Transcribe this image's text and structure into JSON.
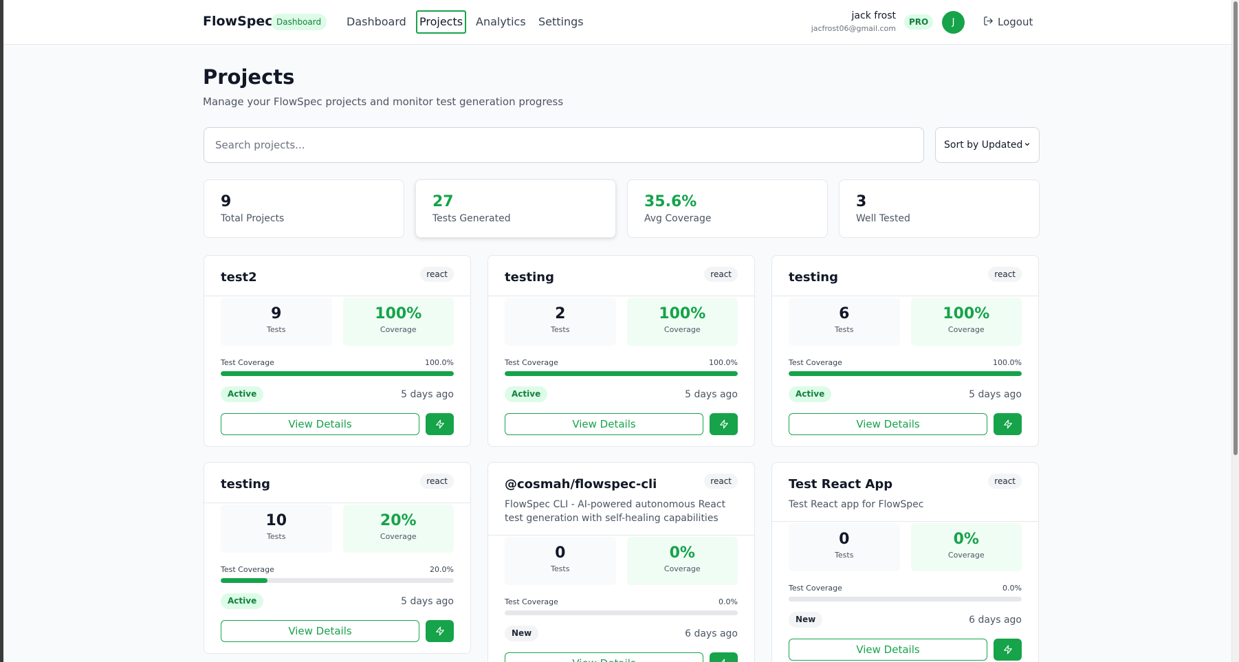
{
  "header": {
    "brand": "FlowSpec",
    "brand_badge": "Dashboard",
    "nav": [
      "Dashboard",
      "Projects",
      "Analytics",
      "Settings"
    ],
    "active_nav": "Projects",
    "user_name": "jack frost",
    "user_email": "jacfrost06@gmail.com",
    "plan_badge": "PRO",
    "avatar_initial": "J",
    "logout_label": "Logout",
    "logout_icon": "logout-icon"
  },
  "page": {
    "title": "Projects",
    "subtitle": "Manage your FlowSpec projects and monitor test generation progress"
  },
  "search": {
    "placeholder": "Search projects...",
    "value": ""
  },
  "sort": {
    "selected": "Sort by Updated",
    "icon": "chevron-down-icon"
  },
  "stats": [
    {
      "value": "9",
      "label": "Total Projects"
    },
    {
      "value": "27",
      "label": "Tests Generated"
    },
    {
      "value": "35.6%",
      "label": "Avg Coverage"
    },
    {
      "value": "3",
      "label": "Well Tested"
    }
  ],
  "colors": {
    "accent": "#16a34a",
    "accent_light": "#dcfce7",
    "border": "#e5e7eb"
  },
  "project_labels": {
    "tests": "Tests",
    "coverage": "Coverage",
    "test_coverage": "Test Coverage",
    "view_details": "View Details",
    "generate_icon": "lightning-icon"
  },
  "projects": [
    {
      "name": "test2",
      "framework": "react",
      "description": "",
      "tests": "9",
      "coverage": "100%",
      "coverage_pct": "100.0%",
      "coverage_value": 100,
      "status": "Active",
      "updated": "5 days ago"
    },
    {
      "name": "testing",
      "framework": "react",
      "description": "",
      "tests": "2",
      "coverage": "100%",
      "coverage_pct": "100.0%",
      "coverage_value": 100,
      "status": "Active",
      "updated": "5 days ago"
    },
    {
      "name": "testing",
      "framework": "react",
      "description": "",
      "tests": "6",
      "coverage": "100%",
      "coverage_pct": "100.0%",
      "coverage_value": 100,
      "status": "Active",
      "updated": "5 days ago"
    },
    {
      "name": "testing",
      "framework": "react",
      "description": "",
      "tests": "10",
      "coverage": "20%",
      "coverage_pct": "20.0%",
      "coverage_value": 20,
      "status": "Active",
      "updated": "5 days ago"
    },
    {
      "name": "@cosmah/flowspec-cli",
      "framework": "react",
      "description": "FlowSpec CLI - AI-powered autonomous React test generation with self-healing capabilities",
      "tests": "0",
      "coverage": "0%",
      "coverage_pct": "0.0%",
      "coverage_value": 0,
      "status": "New",
      "updated": "6 days ago"
    },
    {
      "name": "Test React App",
      "framework": "react",
      "description": "Test React app for FlowSpec",
      "tests": "0",
      "coverage": "0%",
      "coverage_pct": "0.0%",
      "coverage_value": 0,
      "status": "New",
      "updated": "6 days ago"
    }
  ]
}
